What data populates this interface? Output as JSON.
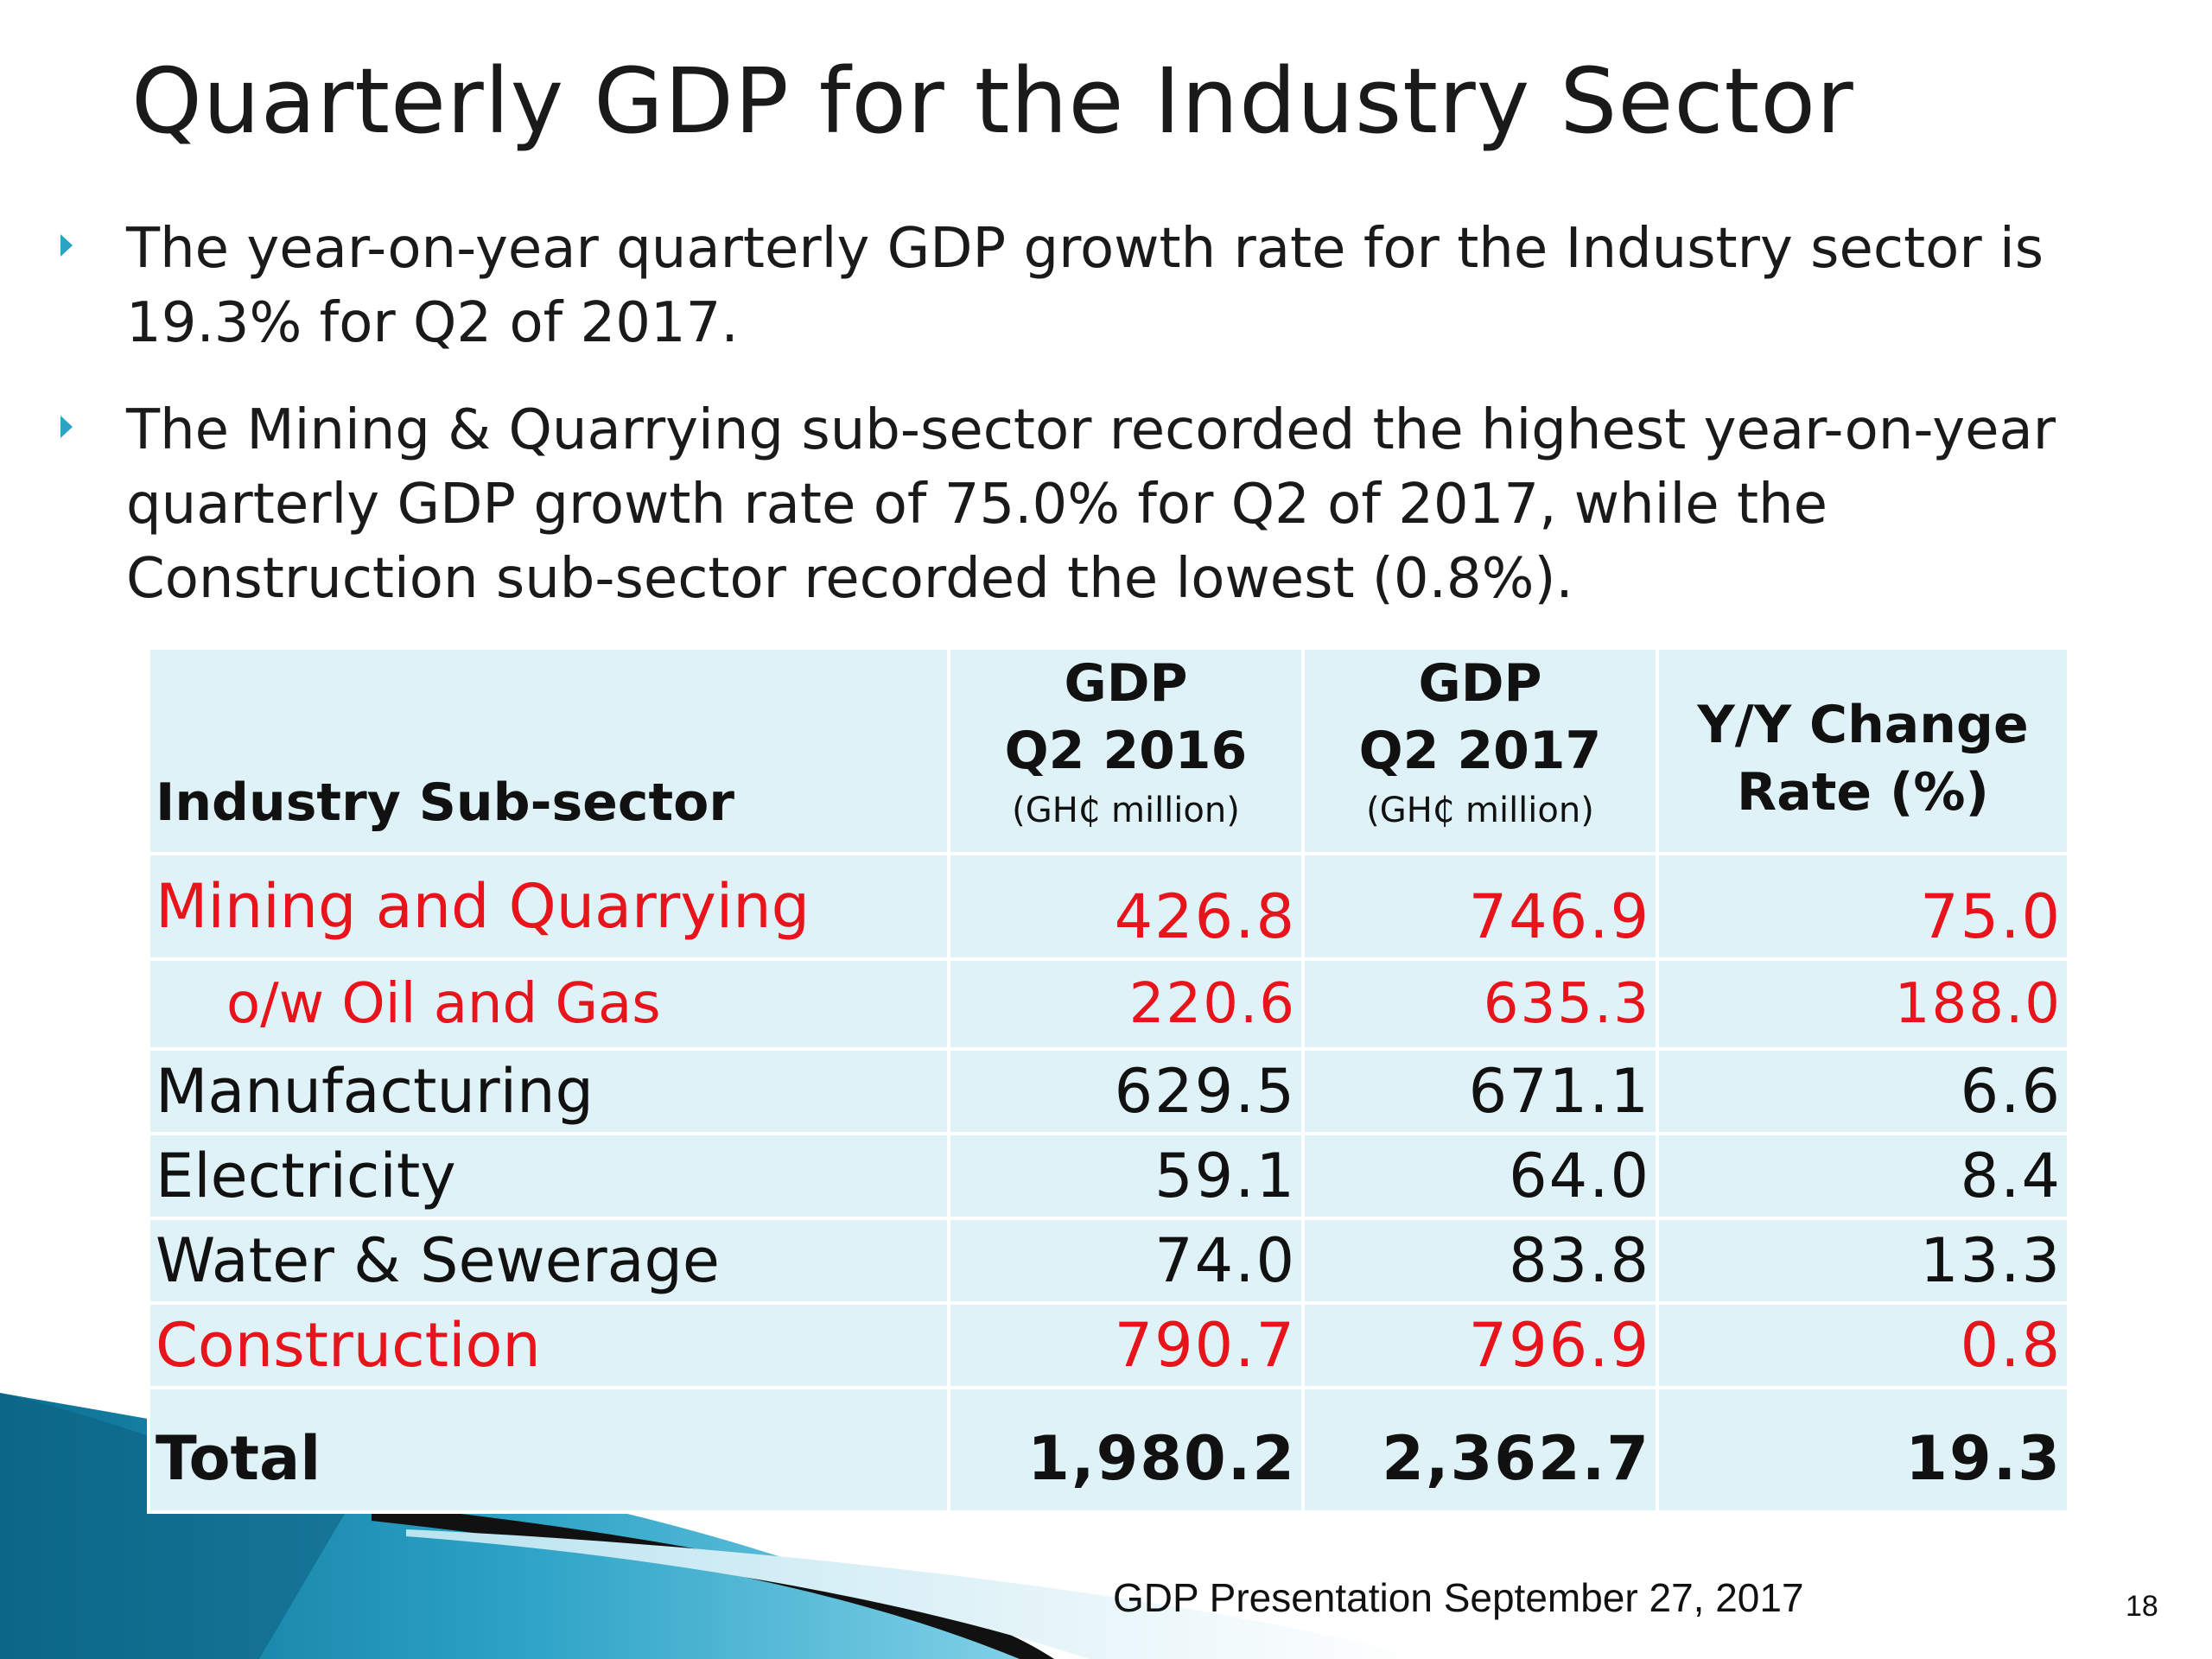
{
  "title": "Quarterly GDP for the Industry Sector",
  "bullets": [
    "The year-on-year quarterly GDP growth rate for the Industry sector is 19.3% for Q2 of 2017.",
    "The Mining & Quarrying sub-sector recorded the highest year-on-year quarterly GDP growth rate of 75.0% for Q2 of 2017, while the Construction sub-sector recorded the lowest (0.8%)."
  ],
  "table": {
    "headers": {
      "sector": "Industry Sub-sector",
      "q2_2016_line1": "GDP",
      "q2_2016_line2": "Q2 2016",
      "q2_2016_unit": "(GH₵ million)",
      "q2_2017_line1": "GDP",
      "q2_2017_line2": "Q2 2017",
      "q2_2017_unit": "(GH₵ million)",
      "change_line1": "Y/Y Change",
      "change_line2": "Rate (%)"
    },
    "rows": [
      {
        "name": "Mining and Quarrying",
        "q2_2016": "426.8",
        "q2_2017": "746.9",
        "change": "75.0",
        "highlight": "#e8141b"
      },
      {
        "name": "o/w Oil and Gas",
        "q2_2016": "220.6",
        "q2_2017": "635.3",
        "change": "188.0",
        "highlight": "#e8141b"
      },
      {
        "name": "Manufacturing",
        "q2_2016": "629.5",
        "q2_2017": "671.1",
        "change": "6.6"
      },
      {
        "name": "Electricity",
        "q2_2016": "59.1",
        "q2_2017": "64.0",
        "change": "8.4"
      },
      {
        "name": "Water & Sewerage",
        "q2_2016": "74.0",
        "q2_2017": "83.8",
        "change": "13.3"
      },
      {
        "name": "Construction",
        "q2_2016": "790.7",
        "q2_2017": "796.9",
        "change": "0.8",
        "highlight": "#e8141b"
      }
    ],
    "total": {
      "name": "Total",
      "q2_2016": "1,980.2",
      "q2_2017": "2,362.7",
      "change": "19.3"
    }
  },
  "footer": "GDP Presentation September 27, 2017",
  "page_number": "18",
  "colors": {
    "accent": "#2aa3c6",
    "highlight": "#e8141b",
    "table_bg": "#dff2f7"
  },
  "icons": {
    "bullet": "triangle-bullet-icon"
  }
}
